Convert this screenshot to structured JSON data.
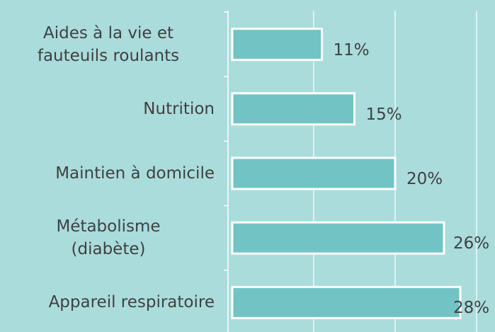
{
  "chart_data": {
    "type": "barh",
    "categories": [
      "Aides à la vie et\nfauteuils roulants",
      "Nutrition",
      "Maintien à domicile",
      "Métabolisme\n(diabète)",
      "Appareil respiratoire"
    ],
    "values": [
      11,
      15,
      20,
      26,
      28
    ],
    "value_labels": [
      "11%",
      "15%",
      "20%",
      "26%",
      "28%"
    ],
    "color": "#72c4c4",
    "xlim": [
      0,
      30
    ],
    "xticks": [
      0,
      10,
      20,
      30
    ],
    "grid": true
  }
}
